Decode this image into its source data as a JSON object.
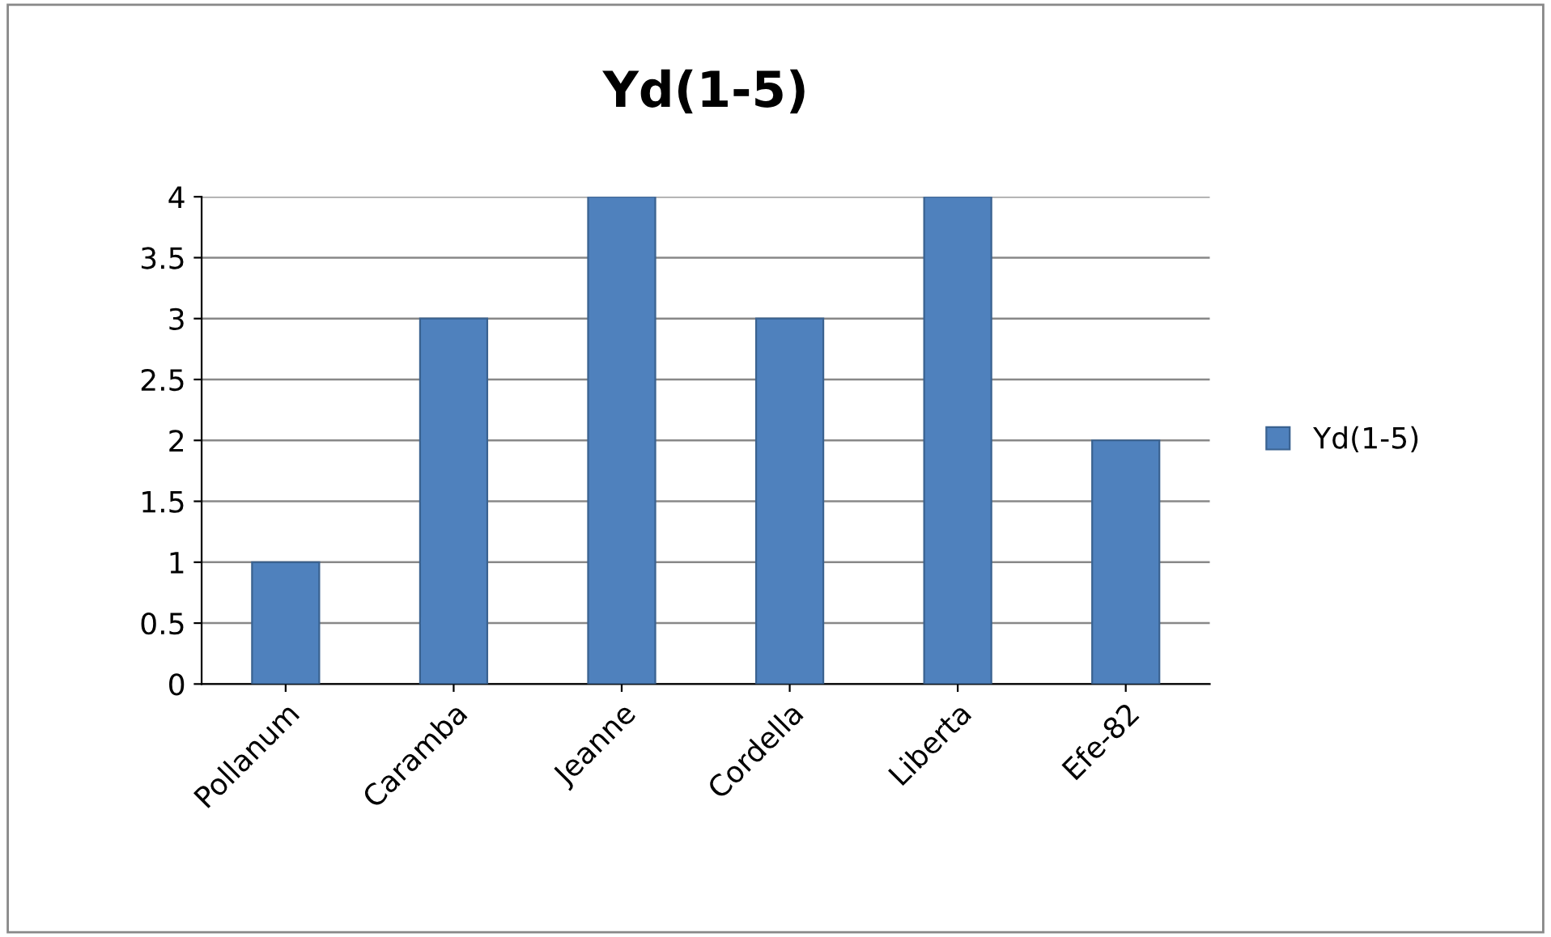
{
  "chart_data": {
    "type": "bar",
    "title": "Yd(1-5)",
    "categories": [
      "Pollanum",
      "Caramba",
      "Jeanne",
      "Cordella",
      "Liberta",
      "Efe-82"
    ],
    "series": [
      {
        "name": "Yd(1-5)",
        "color": "#4f81bd",
        "values": [
          1,
          3,
          4,
          3,
          4,
          2
        ]
      }
    ],
    "ylim": [
      0,
      4
    ],
    "yticks": [
      0,
      0.5,
      1,
      1.5,
      2,
      2.5,
      3,
      3.5,
      4
    ],
    "grid": "y",
    "legend": "right"
  }
}
